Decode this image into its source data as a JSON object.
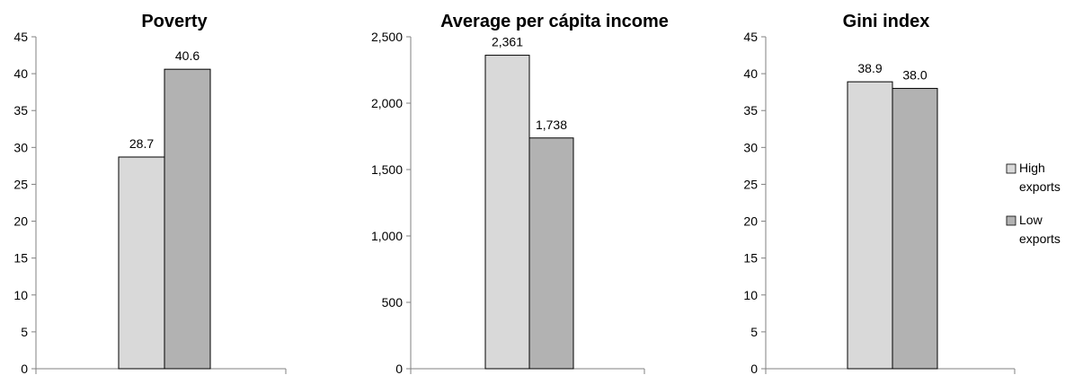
{
  "chart_data": [
    {
      "type": "bar",
      "title": "Poverty",
      "categories": [
        ""
      ],
      "series": [
        {
          "name": "High exports",
          "values": [
            28.7
          ],
          "labels": [
            "28.7"
          ]
        },
        {
          "name": "Low exports",
          "values": [
            40.6
          ],
          "labels": [
            "40.6"
          ]
        }
      ],
      "ylim": [
        0,
        45
      ],
      "yticks": [
        0,
        5,
        10,
        15,
        20,
        25,
        30,
        35,
        40,
        45
      ],
      "ytick_labels": [
        "0",
        "5",
        "10",
        "15",
        "20",
        "25",
        "30",
        "35",
        "40",
        "45"
      ],
      "grid": false
    },
    {
      "type": "bar",
      "title": "Average per cápita income",
      "categories": [
        ""
      ],
      "series": [
        {
          "name": "High exports",
          "values": [
            2361
          ],
          "labels": [
            "2,361"
          ]
        },
        {
          "name": "Low exports",
          "values": [
            1738
          ],
          "labels": [
            "1,738"
          ]
        }
      ],
      "ylim": [
        0,
        2500
      ],
      "yticks": [
        0,
        500,
        1000,
        1500,
        2000,
        2500
      ],
      "ytick_labels": [
        "0",
        "500",
        "1,000",
        "1,500",
        "2,000",
        "2,500"
      ],
      "grid": false
    },
    {
      "type": "bar",
      "title": "Gini index",
      "categories": [
        ""
      ],
      "series": [
        {
          "name": "High exports",
          "values": [
            38.9
          ],
          "labels": [
            "38.9"
          ]
        },
        {
          "name": "Low exports",
          "values": [
            38.0
          ],
          "labels": [
            "38.0"
          ]
        }
      ],
      "ylim": [
        0,
        45
      ],
      "yticks": [
        0,
        5,
        10,
        15,
        20,
        25,
        30,
        35,
        40,
        45
      ],
      "ytick_labels": [
        "0",
        "5",
        "10",
        "15",
        "20",
        "25",
        "30",
        "35",
        "40",
        "45"
      ],
      "grid": false
    }
  ],
  "legend": {
    "placement": "right",
    "items": [
      {
        "line1": "High",
        "line2": "exports",
        "color": "#d9d9d9"
      },
      {
        "line1": "Low",
        "line2": "exports",
        "color": "#b2b2b2"
      }
    ]
  },
  "colors": {
    "high": "#d9d9d9",
    "low": "#b2b2b2",
    "stroke": "#000000",
    "axis": "#808080"
  }
}
